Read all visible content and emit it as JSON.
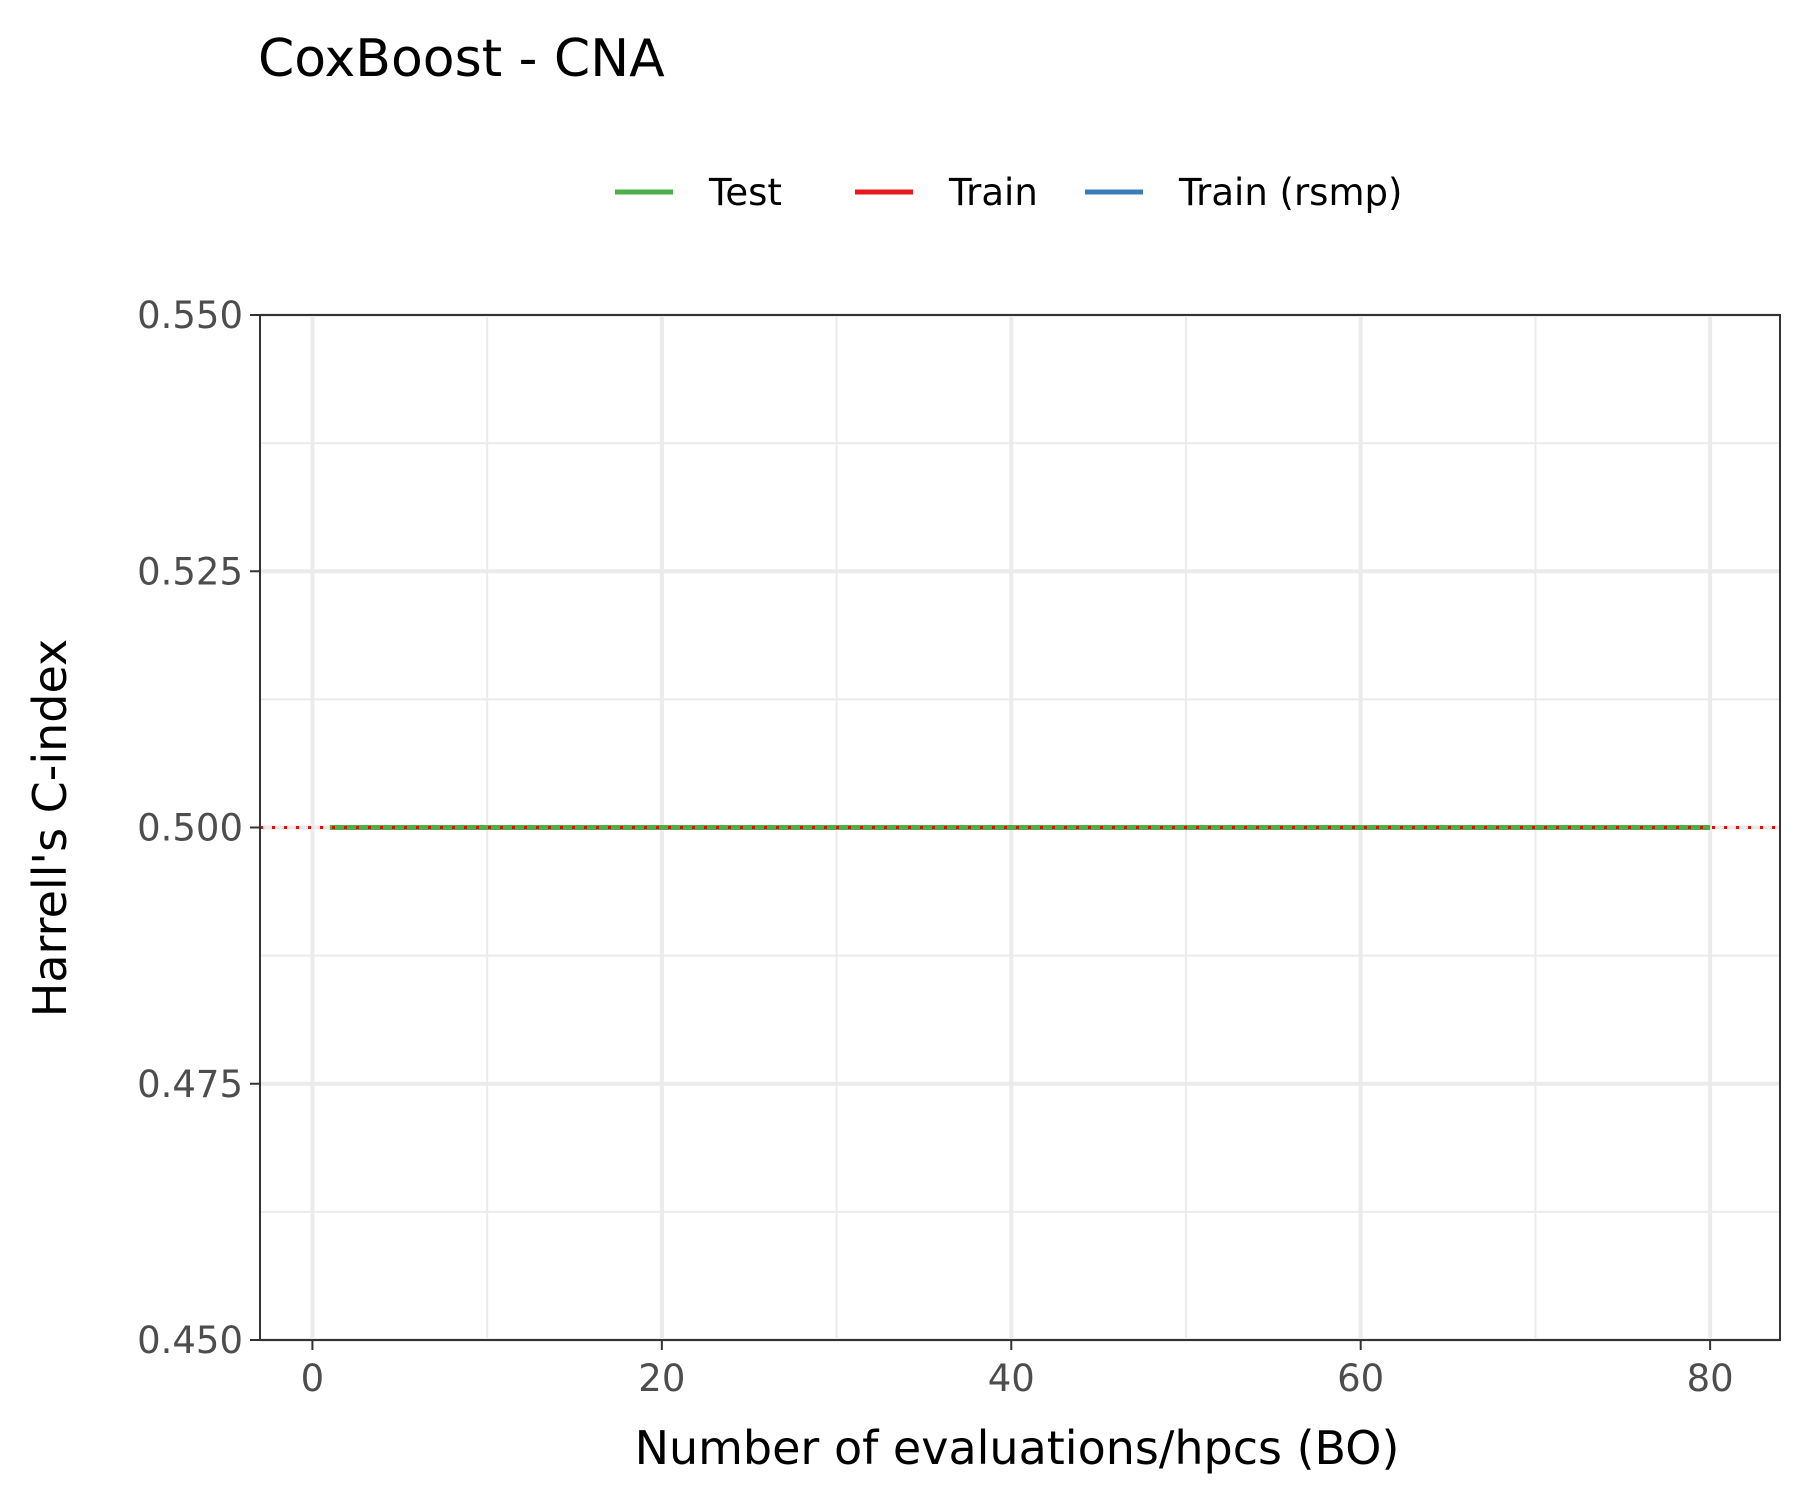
{
  "chart_data": {
    "type": "line",
    "title": "CoxBoost - CNA",
    "xlabel": "Number of evaluations/hpcs (BO)",
    "ylabel": "Harrell's C-index",
    "xlim": [
      -3,
      84
    ],
    "ylim": [
      0.45,
      0.55
    ],
    "x_ticks": [
      0,
      20,
      40,
      60,
      80
    ],
    "x_tick_labels": [
      "0",
      "20",
      "40",
      "60",
      "80"
    ],
    "y_ticks": [
      0.45,
      0.475,
      0.5,
      0.525,
      0.55
    ],
    "y_tick_labels": [
      "0.450",
      "0.475",
      "0.500",
      "0.525",
      "0.550"
    ],
    "x_minor": [
      10,
      30,
      50,
      70
    ],
    "y_minor": [
      0.4625,
      0.4875,
      0.5125,
      0.5375
    ],
    "grid": true,
    "legend_position": "top",
    "legend": [
      {
        "label": "Test",
        "color": "#4DAF4A"
      },
      {
        "label": "Train",
        "color": "#E41A1C"
      },
      {
        "label": "Train (rsmp)",
        "color": "#377EB8"
      }
    ],
    "series": [
      {
        "name": "Test",
        "color": "#4DAF4A",
        "x": [
          1,
          80
        ],
        "y": [
          0.5,
          0.5
        ]
      }
    ],
    "reference_line": {
      "y": 0.5,
      "color": "#FF0000",
      "style": "dotted"
    }
  }
}
